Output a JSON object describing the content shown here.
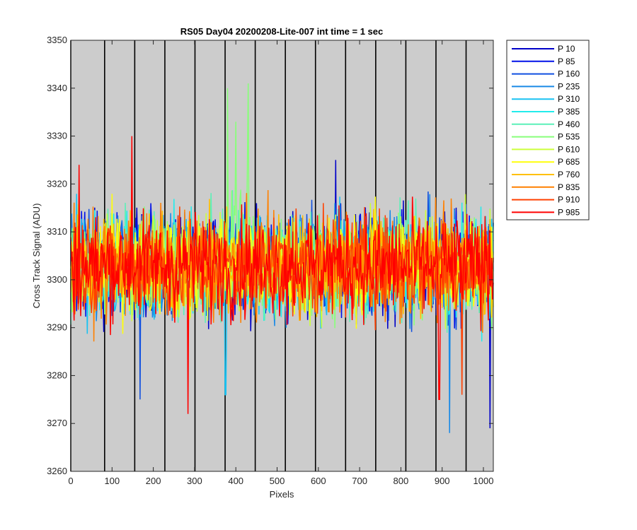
{
  "chart_data": {
    "type": "line",
    "title": "RS05 Day04 20200208-Lite-007 int time = 1 sec",
    "xlabel": "Pixels",
    "ylabel": "Cross Track Signal (ADU)",
    "xlim": [
      0,
      1024
    ],
    "ylim": [
      3260,
      3350
    ],
    "xticks": [
      0,
      100,
      200,
      300,
      400,
      500,
      600,
      700,
      800,
      900,
      1000
    ],
    "yticks": [
      3260,
      3270,
      3280,
      3290,
      3300,
      3310,
      3320,
      3330,
      3340,
      3350
    ],
    "background": "#cccccc",
    "vlines": [
      0,
      82,
      155,
      228,
      301,
      374,
      447,
      520,
      593,
      666,
      739,
      812,
      885,
      958
    ],
    "legend_position": "outside-top-right",
    "baseline": 3303,
    "noise_halfwidth": 13,
    "x_step": 2,
    "series": [
      {
        "name": "P 10",
        "color": "#0000c8"
      },
      {
        "name": "P 85",
        "color": "#0010e8"
      },
      {
        "name": "P 160",
        "color": "#0f4fe0"
      },
      {
        "name": "P 235",
        "color": "#1a8ae6"
      },
      {
        "name": "P 310",
        "color": "#19c2f2"
      },
      {
        "name": "P 385",
        "color": "#22ecec"
      },
      {
        "name": "P 460",
        "color": "#5cf0b8"
      },
      {
        "name": "P 535",
        "color": "#88ff7a"
      },
      {
        "name": "P 610",
        "color": "#ccff3c"
      },
      {
        "name": "P 685",
        "color": "#ffff0a"
      },
      {
        "name": "P 760",
        "color": "#ffc000"
      },
      {
        "name": "P 835",
        "color": "#ff8000"
      },
      {
        "name": "P 910",
        "color": "#ff4000"
      },
      {
        "name": "P 985",
        "color": "#ff0000"
      }
    ],
    "spikes": [
      {
        "series": "P 535",
        "x": 380,
        "y": 3340
      },
      {
        "series": "P 535",
        "x": 430,
        "y": 3341
      },
      {
        "series": "P 535",
        "x": 400,
        "y": 3333
      },
      {
        "series": "P 985",
        "x": 148,
        "y": 3330
      },
      {
        "series": "P 985",
        "x": 284,
        "y": 3272
      },
      {
        "series": "P 160",
        "x": 168,
        "y": 3275
      },
      {
        "series": "P 310",
        "x": 375,
        "y": 3276
      },
      {
        "series": "P 10",
        "x": 1016,
        "y": 3269
      },
      {
        "series": "P 235",
        "x": 918,
        "y": 3268
      },
      {
        "series": "P 985",
        "x": 893,
        "y": 3275
      },
      {
        "series": "P 910",
        "x": 948,
        "y": 3276
      },
      {
        "series": "P 10",
        "x": 642,
        "y": 3325
      },
      {
        "series": "P 985",
        "x": 20,
        "y": 3324
      }
    ]
  }
}
